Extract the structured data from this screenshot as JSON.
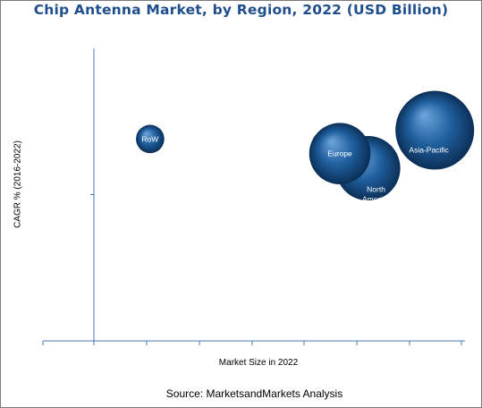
{
  "chart_data": {
    "type": "bubble",
    "title": "Chip Antenna Market, by Region, 2022 (USD Billion)",
    "xlabel": "Market Size in 2022",
    "ylabel": "CAGR % (2016-2022)",
    "xlim": [
      0,
      10
    ],
    "ylim": [
      0,
      10
    ],
    "grid": false,
    "legend": "none",
    "bubbles": [
      {
        "name": "North America",
        "label_lines": [
          "North",
          "America"
        ],
        "x": 7.8,
        "y": 5.9,
        "size": 0.82,
        "label_offset": [
          0.25,
          0.8
        ]
      },
      {
        "name": "Europe",
        "label_lines": [
          "Europe"
        ],
        "x": 7.0,
        "y": 6.4,
        "size": 0.78,
        "label_offset": [
          0,
          0
        ]
      },
      {
        "name": "Asia-Pacific",
        "label_lines": [
          "Asia-Pacific"
        ],
        "x": 9.7,
        "y": 7.2,
        "size": 1.0,
        "label_offset": [
          -0.15,
          0.5
        ]
      },
      {
        "name": "RoW",
        "label_lines": [
          "RoW"
        ],
        "x": 1.6,
        "y": 6.9,
        "size": 0.36,
        "label_offset": [
          0,
          0
        ]
      }
    ],
    "colors": {
      "bubble_light": "#6fa6dc",
      "bubble_mid": "#1f5f9e",
      "bubble_dark": "#0b2f57",
      "axis": "#4a78b0"
    }
  },
  "source": "Source: MarketsandMarkets Analysis"
}
